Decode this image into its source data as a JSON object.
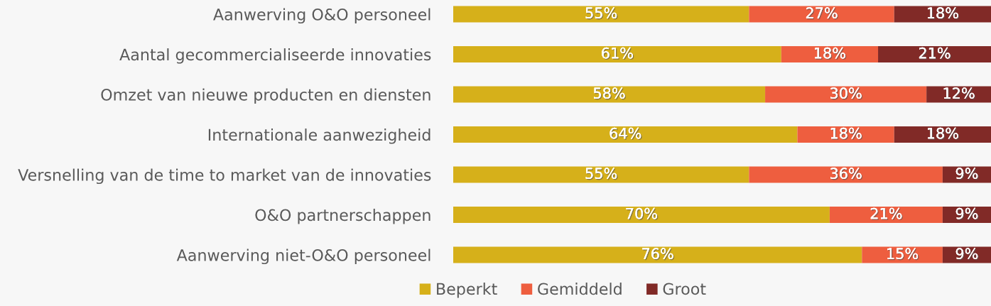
{
  "chart_data": {
    "type": "bar",
    "orientation": "horizontal",
    "stacked": true,
    "categories": [
      "Aanwerving O&O personeel",
      "Aantal gecommercialiseerde innovaties",
      "Omzet van nieuwe producten en diensten",
      "Internationale aanwezigheid",
      "Versnelling van de time to market van de innovaties",
      "O&O partnerschappen",
      "Aanwerving niet-O&O personeel"
    ],
    "series": [
      {
        "name": "Beperkt",
        "color": "#d6b01a",
        "values": [
          55,
          61,
          58,
          64,
          55,
          70,
          76
        ],
        "value_labels": [
          "55%",
          "61%",
          "58%",
          "64%",
          "55%",
          "70%",
          "76%"
        ]
      },
      {
        "name": "Gemiddeld",
        "color": "#ee5e3f",
        "values": [
          27,
          18,
          30,
          18,
          36,
          21,
          15
        ],
        "value_labels": [
          "27%",
          "18%",
          "30%",
          "18%",
          "36%",
          "21%",
          "15%"
        ]
      },
      {
        "name": "Groot",
        "color": "#812a27",
        "values": [
          18,
          21,
          12,
          18,
          9,
          9,
          9
        ],
        "value_labels": [
          "18%",
          "21%",
          "12%",
          "18%",
          "9%",
          "9%",
          "9%"
        ]
      }
    ],
    "xlim": [
      0,
      100
    ],
    "tick_labels": "y",
    "grid": false,
    "legend": "bottom"
  }
}
